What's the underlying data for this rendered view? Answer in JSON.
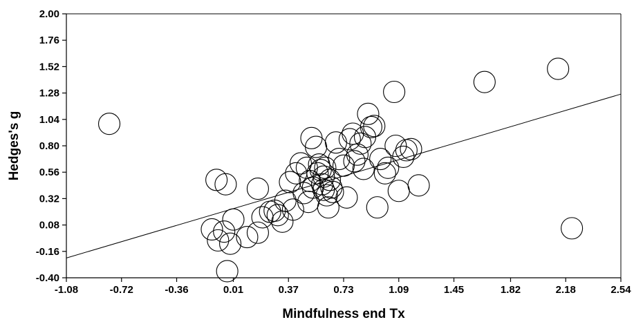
{
  "chart_data": {
    "type": "scatter",
    "xlabel": "Mindfulness  end  Tx",
    "ylabel": "Hedges's g",
    "xlim": [
      -1.08,
      2.54
    ],
    "ylim": [
      -0.4,
      2.0
    ],
    "x_ticks": [
      "-1.08",
      "-0.72",
      "-0.36",
      "0.01",
      "0.37",
      "0.73",
      "1.09",
      "1.45",
      "1.82",
      "2.18",
      "2.54"
    ],
    "y_ticks": [
      "2.00",
      "1.76",
      "1.52",
      "1.28",
      "1.04",
      "0.80",
      "0.56",
      "0.32",
      "0.08",
      "-0.16",
      "-0.40"
    ],
    "grid": false,
    "marker": "open-circle",
    "regression_line": {
      "x": [
        -1.08,
        2.54
      ],
      "y": [
        -0.22,
        1.27
      ]
    },
    "points": [
      {
        "x": -0.8,
        "y": 1.0
      },
      {
        "x": -0.1,
        "y": 0.49
      },
      {
        "x": -0.04,
        "y": 0.45
      },
      {
        "x": -0.13,
        "y": 0.04
      },
      {
        "x": -0.09,
        "y": -0.06
      },
      {
        "x": -0.05,
        "y": 0.02
      },
      {
        "x": -0.01,
        "y": -0.09
      },
      {
        "x": -0.03,
        "y": -0.34
      },
      {
        "x": 0.01,
        "y": 0.13
      },
      {
        "x": 0.1,
        "y": -0.03
      },
      {
        "x": 0.17,
        "y": 0.01
      },
      {
        "x": 0.17,
        "y": 0.41
      },
      {
        "x": 0.2,
        "y": 0.15
      },
      {
        "x": 0.25,
        "y": 0.2
      },
      {
        "x": 0.28,
        "y": 0.21
      },
      {
        "x": 0.3,
        "y": 0.17
      },
      {
        "x": 0.33,
        "y": 0.11
      },
      {
        "x": 0.35,
        "y": 0.3
      },
      {
        "x": 0.38,
        "y": 0.47
      },
      {
        "x": 0.4,
        "y": 0.22
      },
      {
        "x": 0.42,
        "y": 0.55
      },
      {
        "x": 0.45,
        "y": 0.64
      },
      {
        "x": 0.47,
        "y": 0.37
      },
      {
        "x": 0.49,
        "y": 0.6
      },
      {
        "x": 0.5,
        "y": 0.29
      },
      {
        "x": 0.51,
        "y": 0.48
      },
      {
        "x": 0.52,
        "y": 0.87
      },
      {
        "x": 0.53,
        "y": 0.42
      },
      {
        "x": 0.55,
        "y": 0.79
      },
      {
        "x": 0.56,
        "y": 0.55
      },
      {
        "x": 0.57,
        "y": 0.63
      },
      {
        "x": 0.58,
        "y": 0.58
      },
      {
        "x": 0.59,
        "y": 0.45
      },
      {
        "x": 0.6,
        "y": 0.52
      },
      {
        "x": 0.6,
        "y": 0.4
      },
      {
        "x": 0.61,
        "y": 0.6
      },
      {
        "x": 0.62,
        "y": 0.35
      },
      {
        "x": 0.63,
        "y": 0.24
      },
      {
        "x": 0.64,
        "y": 0.49
      },
      {
        "x": 0.65,
        "y": 0.42
      },
      {
        "x": 0.66,
        "y": 0.38
      },
      {
        "x": 0.68,
        "y": 0.83
      },
      {
        "x": 0.7,
        "y": 0.68
      },
      {
        "x": 0.73,
        "y": 0.62
      },
      {
        "x": 0.75,
        "y": 0.33
      },
      {
        "x": 0.77,
        "y": 0.86
      },
      {
        "x": 0.79,
        "y": 0.91
      },
      {
        "x": 0.8,
        "y": 0.66
      },
      {
        "x": 0.82,
        "y": 0.72
      },
      {
        "x": 0.84,
        "y": 0.82
      },
      {
        "x": 0.86,
        "y": 0.59
      },
      {
        "x": 0.87,
        "y": 0.88
      },
      {
        "x": 0.89,
        "y": 1.09
      },
      {
        "x": 0.91,
        "y": 0.97
      },
      {
        "x": 0.93,
        "y": 0.98
      },
      {
        "x": 0.95,
        "y": 0.24
      },
      {
        "x": 0.97,
        "y": 0.68
      },
      {
        "x": 1.0,
        "y": 0.55
      },
      {
        "x": 1.02,
        "y": 0.6
      },
      {
        "x": 1.06,
        "y": 1.29
      },
      {
        "x": 1.07,
        "y": 0.8
      },
      {
        "x": 1.09,
        "y": 0.39
      },
      {
        "x": 1.12,
        "y": 0.7
      },
      {
        "x": 1.14,
        "y": 0.76
      },
      {
        "x": 1.17,
        "y": 0.77
      },
      {
        "x": 1.22,
        "y": 0.44
      },
      {
        "x": 1.65,
        "y": 1.38
      },
      {
        "x": 2.13,
        "y": 1.5
      },
      {
        "x": 2.22,
        "y": 0.05
      }
    ]
  }
}
